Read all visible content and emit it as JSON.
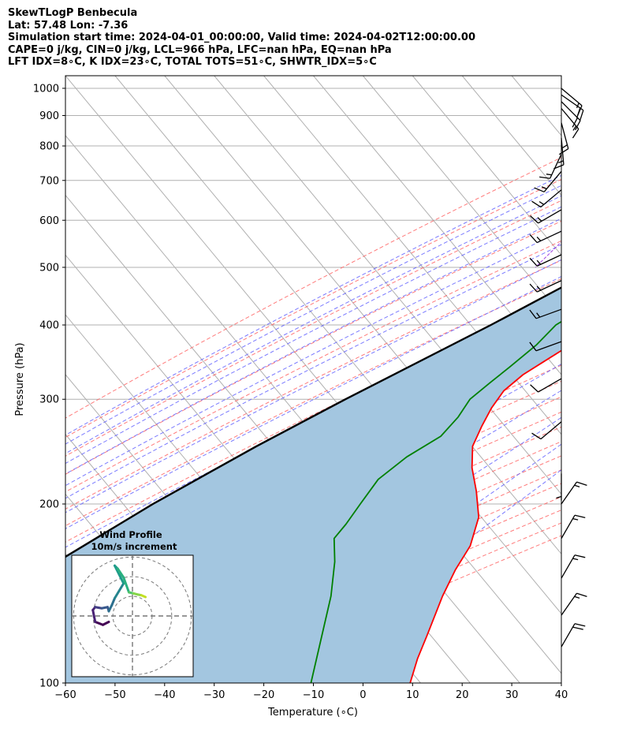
{
  "header": {
    "line1": "SkewTLogP Benbecula",
    "line2": "Lat: 57.48   Lon: -7.36",
    "line3": "Simulation start time: 2024-04-01_00:00:00, Valid time: 2024-04-02T12:00:00.00",
    "line4": "CAPE=0 j/kg, CIN=0 j/kg, LCL=966 hPa, LFC=nan hPa, EQ=nan hPa",
    "line5": "LFT IDX=8∘C, K IDX=23∘C, TOTAL TOTS=51∘C, SHWTR_IDX=5∘C"
  },
  "chart_data": {
    "type": "line",
    "title": "SkewTLogP Benbecula",
    "xlabel": "Temperature (∘C)",
    "ylabel": "Pressure (hPa)",
    "xlim": [
      -60,
      40
    ],
    "ylim": [
      1050,
      100
    ],
    "x_ticks": [
      -60,
      -50,
      -40,
      -30,
      -20,
      -10,
      0,
      10,
      20,
      30,
      40
    ],
    "x_tick_labels": [
      "−60",
      "−50",
      "−40",
      "−30",
      "−20",
      "−10",
      "0",
      "10",
      "20",
      "30",
      "40"
    ],
    "y_ticks": [
      1000,
      900,
      800,
      700,
      600,
      500,
      400,
      300,
      200,
      100
    ],
    "y_tick_labels": [
      "1000",
      "900",
      "800",
      "700",
      "600",
      "500",
      "400",
      "300",
      "200",
      "100"
    ],
    "grid": true,
    "colors": {
      "temperature": "#ff0000",
      "dewpoint": "#008000",
      "parcel": "#000000",
      "fill": "#a3c6e0",
      "dry_adiabat": "#ff6464",
      "moist_adiabat": "#6464ff",
      "mixing_ratio": "#a040e0",
      "isotherm": "#b0b0b0"
    },
    "series": [
      {
        "name": "Temperature",
        "color": "#ff0000",
        "points": [
          [
            1000,
            5.0
          ],
          [
            980,
            5.5
          ],
          [
            960,
            6.6
          ],
          [
            925,
            5.6
          ],
          [
            900,
            5.2
          ],
          [
            850,
            4.0
          ],
          [
            800,
            2.4
          ],
          [
            750,
            1.0
          ],
          [
            700,
            0.0
          ],
          [
            650,
            -1.0
          ],
          [
            600,
            -2.4
          ],
          [
            550,
            -4.2
          ],
          [
            500,
            -6.8
          ],
          [
            470,
            -8.6
          ],
          [
            440,
            -9.2
          ],
          [
            410,
            -11.3
          ],
          [
            380,
            -13.7
          ],
          [
            350,
            -17.0
          ],
          [
            330,
            -19.3
          ],
          [
            310,
            -20.5
          ],
          [
            290,
            -20.1
          ],
          [
            270,
            -19.0
          ],
          [
            250,
            -17.5
          ],
          [
            230,
            -14.0
          ],
          [
            210,
            -9.2
          ],
          [
            190,
            -4.4
          ],
          [
            170,
            -1.3
          ],
          [
            155,
            -0.3
          ],
          [
            140,
            1.5
          ],
          [
            120,
            5.0
          ],
          [
            110,
            6.9
          ],
          [
            100,
            9.5
          ]
        ]
      },
      {
        "name": "Dewpoint",
        "color": "#008000",
        "points": [
          [
            1000,
            3.0
          ],
          [
            980,
            3.1
          ],
          [
            955,
            1.8
          ],
          [
            925,
            4.0
          ],
          [
            900,
            4.6
          ],
          [
            850,
            4.1
          ],
          [
            800,
            3.2
          ],
          [
            750,
            1.7
          ],
          [
            700,
            -0.3
          ],
          [
            650,
            -2.8
          ],
          [
            600,
            -4.9
          ],
          [
            550,
            -7.1
          ],
          [
            500,
            -10.2
          ],
          [
            450,
            -15.5
          ],
          [
            420,
            -18.9
          ],
          [
            400,
            -21.0
          ],
          [
            370,
            -21.6
          ],
          [
            340,
            -23.3
          ],
          [
            320,
            -24.6
          ],
          [
            300,
            -25.9
          ],
          [
            280,
            -25.3
          ],
          [
            260,
            -25.6
          ],
          [
            240,
            -29.0
          ],
          [
            220,
            -31.0
          ],
          [
            200,
            -30.5
          ],
          [
            185,
            -30.0
          ],
          [
            175,
            -30.0
          ],
          [
            160,
            -26.0
          ],
          [
            140,
            -21.0
          ],
          [
            100,
            -10.5
          ]
        ]
      },
      {
        "name": "Parcel profile",
        "color": "#000000",
        "points": [
          [
            1000,
            6.5
          ],
          [
            966,
            6.0
          ],
          [
            900,
            3.6
          ],
          [
            850,
            1.6
          ],
          [
            800,
            -0.7
          ],
          [
            750,
            -3.2
          ],
          [
            700,
            -6.0
          ],
          [
            600,
            -12.8
          ],
          [
            500,
            -21.9
          ],
          [
            400,
            -34.1
          ],
          [
            300,
            -51.0
          ],
          [
            250,
            -61.1
          ],
          [
            200,
            -72.3
          ],
          [
            150,
            -84.7
          ],
          [
            120,
            -92.8
          ],
          [
            100,
            -98.6
          ]
        ]
      }
    ],
    "shading": "Parcel profile to Temperature (light blue)",
    "wind_barbs": [
      {
        "p": 1000,
        "speed_kt": 15,
        "dir_deg": 130
      },
      {
        "p": 975,
        "speed_kt": 20,
        "dir_deg": 125
      },
      {
        "p": 950,
        "speed_kt": 20,
        "dir_deg": 135
      },
      {
        "p": 925,
        "speed_kt": 15,
        "dir_deg": 140
      },
      {
        "p": 875,
        "speed_kt": 15,
        "dir_deg": 165
      },
      {
        "p": 825,
        "speed_kt": 15,
        "dir_deg": 175
      },
      {
        "p": 775,
        "speed_kt": 15,
        "dir_deg": 205
      },
      {
        "p": 725,
        "speed_kt": 15,
        "dir_deg": 220
      },
      {
        "p": 675,
        "speed_kt": 15,
        "dir_deg": 230
      },
      {
        "p": 625,
        "speed_kt": 15,
        "dir_deg": 240
      },
      {
        "p": 575,
        "speed_kt": 15,
        "dir_deg": 245
      },
      {
        "p": 525,
        "speed_kt": 15,
        "dir_deg": 245
      },
      {
        "p": 475,
        "speed_kt": 15,
        "dir_deg": 245
      },
      {
        "p": 425,
        "speed_kt": 15,
        "dir_deg": 250
      },
      {
        "p": 375,
        "speed_kt": 10,
        "dir_deg": 250
      },
      {
        "p": 325,
        "speed_kt": 10,
        "dir_deg": 240
      },
      {
        "p": 275,
        "speed_kt": 10,
        "dir_deg": 230
      },
      {
        "p": 225,
        "speed_kt": 5,
        "dir_deg": 180
      },
      {
        "p": 200,
        "speed_kt": 15,
        "dir_deg": 35
      },
      {
        "p": 175,
        "speed_kt": 15,
        "dir_deg": 30
      },
      {
        "p": 150,
        "speed_kt": 15,
        "dir_deg": 30
      },
      {
        "p": 130,
        "speed_kt": 15,
        "dir_deg": 35
      },
      {
        "p": 115,
        "speed_kt": 20,
        "dir_deg": 30
      }
    ],
    "hodograph": {
      "title": "Wind Profile",
      "subtitle": "10m/s increment",
      "points": [
        [
          -4.0,
          -1.0
        ],
        [
          -5.0,
          -1.5
        ],
        [
          -6.3,
          -1.0
        ],
        [
          -6.7,
          1.0
        ],
        [
          -6.3,
          1.5
        ],
        [
          -5.2,
          1.3
        ],
        [
          -4.2,
          1.5
        ],
        [
          -4.0,
          0.8
        ],
        [
          -3.5,
          1.8
        ],
        [
          -3.0,
          3.0
        ],
        [
          -1.5,
          5.5
        ],
        [
          -3.0,
          8.5
        ],
        [
          -2.5,
          8.0
        ],
        [
          -1.5,
          6.5
        ],
        [
          -0.6,
          4.0
        ],
        [
          0.2,
          3.8
        ],
        [
          1.0,
          3.6
        ],
        [
          1.5,
          3.5
        ],
        [
          2.2,
          3.2
        ]
      ]
    }
  }
}
